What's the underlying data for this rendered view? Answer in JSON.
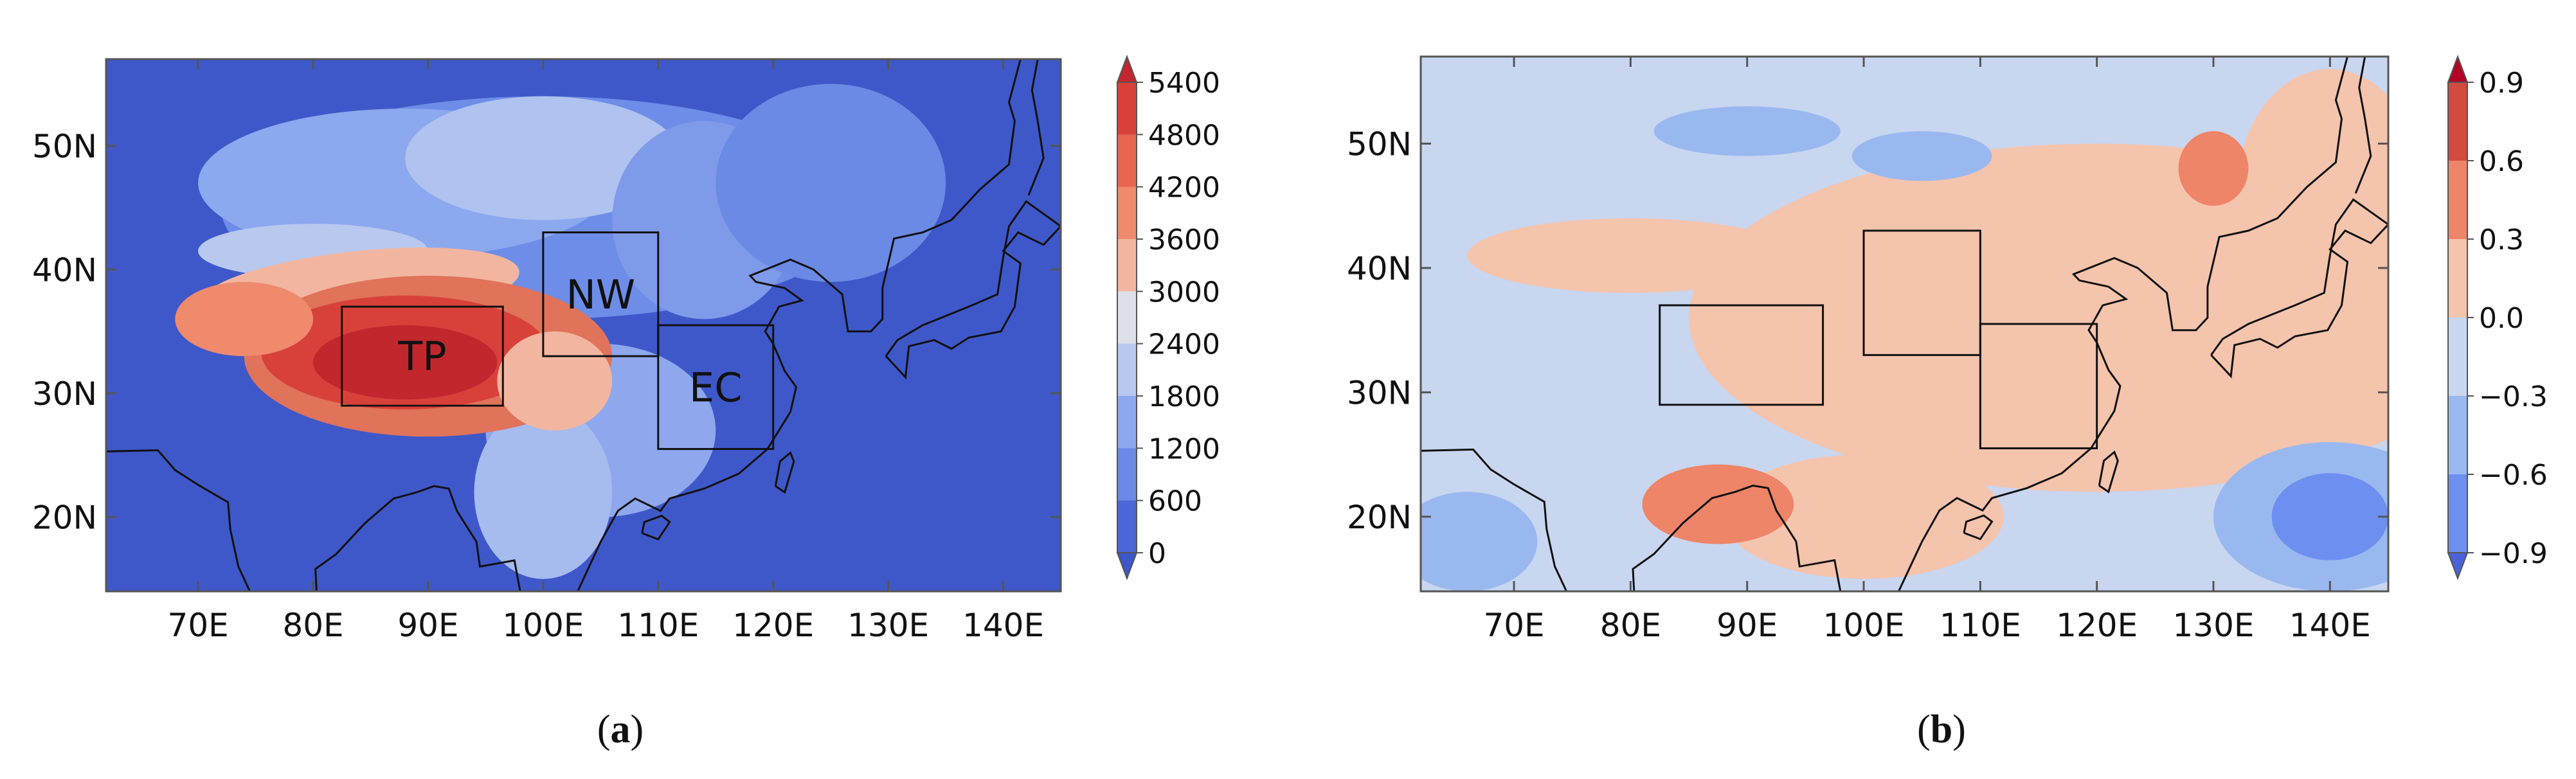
{
  "panels": [
    {
      "id": "a",
      "caption_open": "(",
      "caption_letter": "a",
      "caption_close": ")",
      "lon_range": [
        62,
        145
      ],
      "lat_range": [
        14,
        57
      ],
      "x_ticks": [
        "70E",
        "80E",
        "90E",
        "100E",
        "110E",
        "120E",
        "130E",
        "140E"
      ],
      "y_ticks": [
        "20N",
        "30N",
        "40N",
        "50N"
      ],
      "regions": [
        {
          "label": "TP",
          "lon": [
            82.5,
            96.5
          ],
          "lat": [
            29,
            37
          ]
        },
        {
          "label": "NW",
          "lon": [
            100,
            110
          ],
          "lat": [
            33,
            43
          ]
        },
        {
          "label": "EC",
          "lon": [
            110,
            120
          ],
          "lat": [
            25.5,
            35.5
          ]
        }
      ],
      "colorbar": {
        "levels": [
          "5400",
          "4800",
          "4200",
          "3600",
          "3000",
          "2400",
          "1800",
          "1200",
          "600",
          "0"
        ],
        "colors": [
          "#c1272d",
          "#d8413a",
          "#e66650",
          "#ef8a6c",
          "#f2b6a0",
          "#dde0e8",
          "#b8c8ef",
          "#8ca8ee",
          "#6b8ae6",
          "#4a68d6",
          "#3d56c8"
        ],
        "extend": "both"
      },
      "background_color": "#3f58c9"
    },
    {
      "id": "b",
      "caption_open": "(",
      "caption_letter": "b",
      "caption_close": ")",
      "lon_range": [
        62,
        145
      ],
      "lat_range": [
        14,
        57
      ],
      "x_ticks": [
        "70E",
        "80E",
        "90E",
        "100E",
        "110E",
        "120E",
        "130E",
        "140E"
      ],
      "y_ticks": [
        "20N",
        "30N",
        "40N",
        "50N"
      ],
      "regions": [
        {
          "label": "",
          "lon": [
            82.5,
            96.5
          ],
          "lat": [
            29,
            37
          ]
        },
        {
          "label": "",
          "lon": [
            100,
            110
          ],
          "lat": [
            33,
            43
          ]
        },
        {
          "label": "",
          "lon": [
            110,
            120
          ],
          "lat": [
            25.5,
            35.5
          ]
        }
      ],
      "colorbar": {
        "levels": [
          "0.9",
          "0.6",
          "0.3",
          "0.0",
          "−0.3",
          "−0.6",
          "−0.9"
        ],
        "colors": [
          "#b40426",
          "#d24b40",
          "#ee8468",
          "#f5c4ac",
          "#c8d6f0",
          "#9ab8f0",
          "#6d8ff0",
          "#4a63d6"
        ],
        "extend": "both"
      },
      "background_color": "#c8d6f0"
    }
  ]
}
